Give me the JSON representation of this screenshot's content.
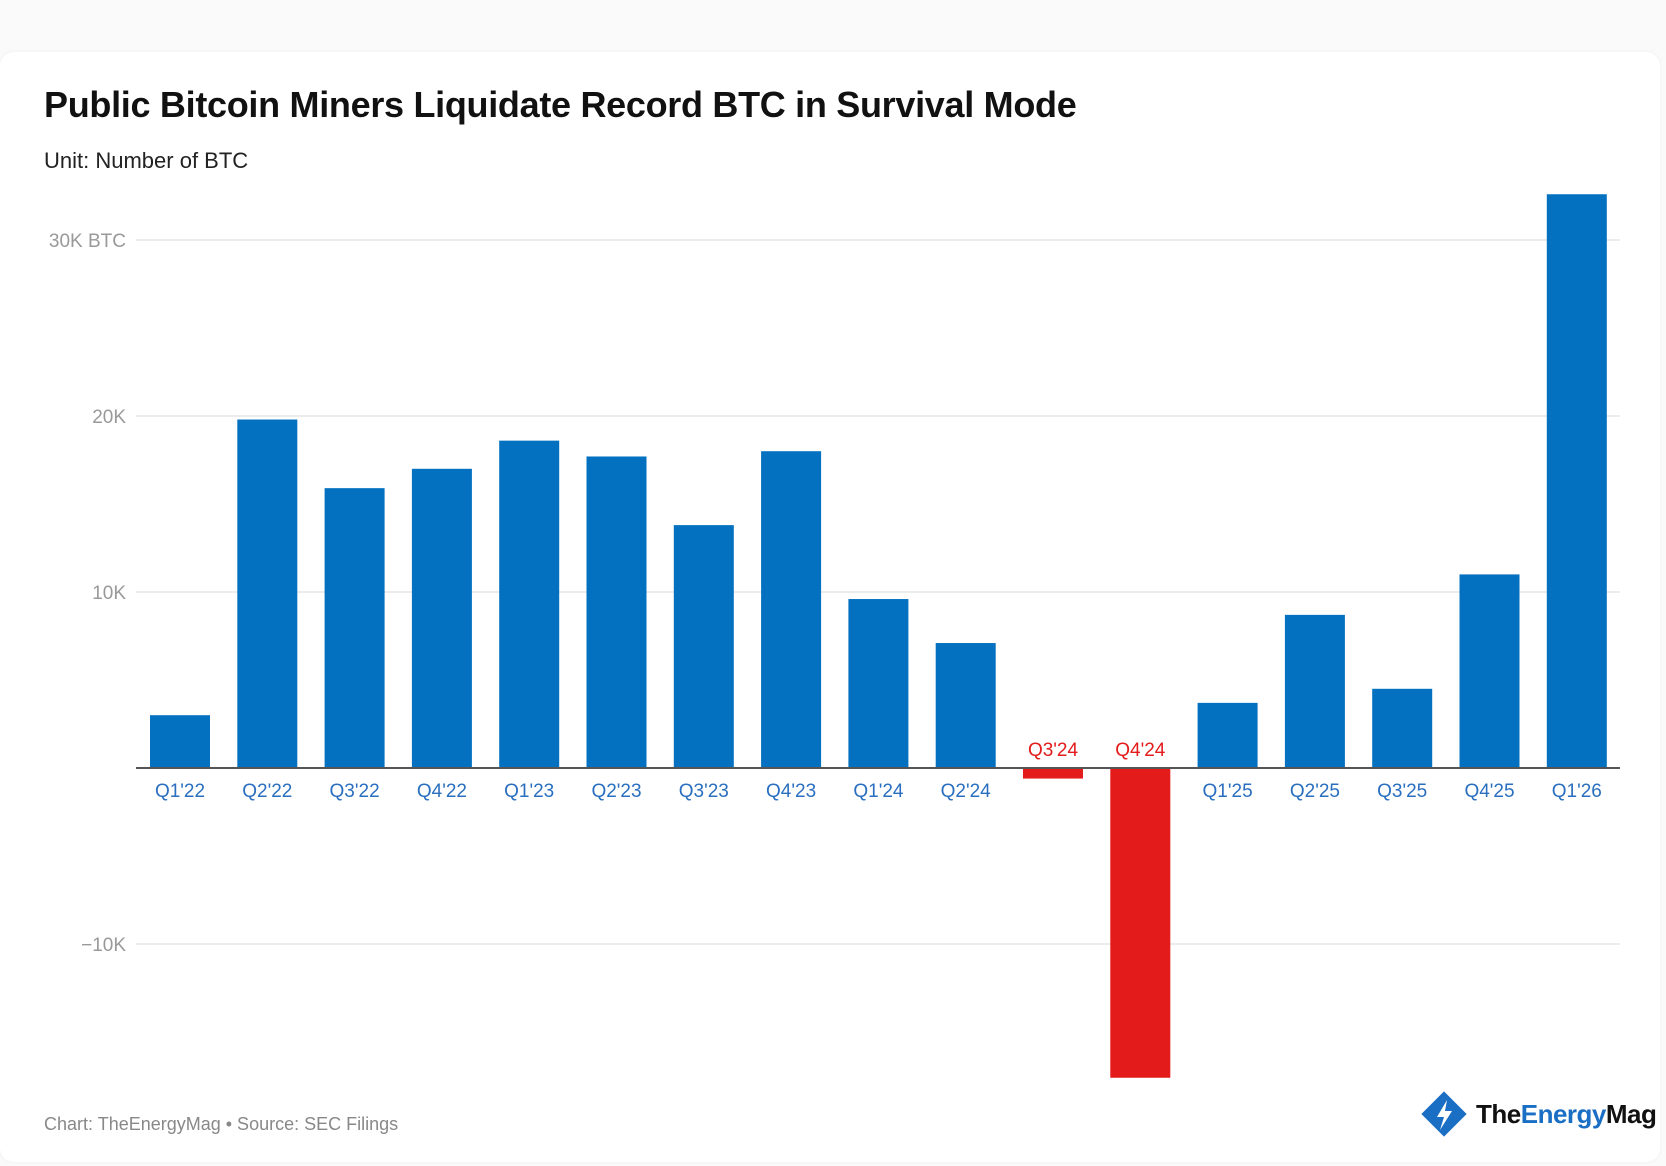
{
  "title": "Public Bitcoin Miners Liquidate Record BTC in Survival Mode",
  "subtitle": "Unit: Number of BTC",
  "footer": "Chart: TheEnergyMag • Source: SEC Filings",
  "logo": {
    "part1": "The",
    "part2": "Energy",
    "part3": "Mag",
    "icon": "lightning-diamond-icon"
  },
  "colors": {
    "positive": "#0471c0",
    "negative": "#e31b1b",
    "positive_label": "#2a6fbf",
    "negative_label": "#e31b1b",
    "grid": "#e6e6e6",
    "axis": "#555555"
  },
  "chart_data": {
    "type": "bar",
    "title": "Public Bitcoin Miners Liquidate Record BTC in Survival Mode",
    "subtitle": "Unit: Number of BTC",
    "categories": [
      "Q1'22",
      "Q2'22",
      "Q3'22",
      "Q4'22",
      "Q1'23",
      "Q2'23",
      "Q3'23",
      "Q4'23",
      "Q1'24",
      "Q2'24",
      "Q3'24",
      "Q4'24",
      "Q1'25",
      "Q2'25",
      "Q3'25",
      "Q4'25",
      "Q1'26"
    ],
    "values": [
      3000,
      19800,
      15900,
      17000,
      18600,
      17700,
      13800,
      18000,
      9600,
      7100,
      -600,
      -17600,
      3700,
      8700,
      4500,
      11000,
      32600
    ],
    "ylim": [
      -18000,
      33000
    ],
    "yticks": [
      {
        "value": 30000,
        "label": "30K BTC"
      },
      {
        "value": 20000,
        "label": "20K"
      },
      {
        "value": 10000,
        "label": "10K"
      },
      {
        "value": -10000,
        "label": "−10K"
      }
    ],
    "grid": true,
    "xlabel": "",
    "ylabel": ""
  }
}
